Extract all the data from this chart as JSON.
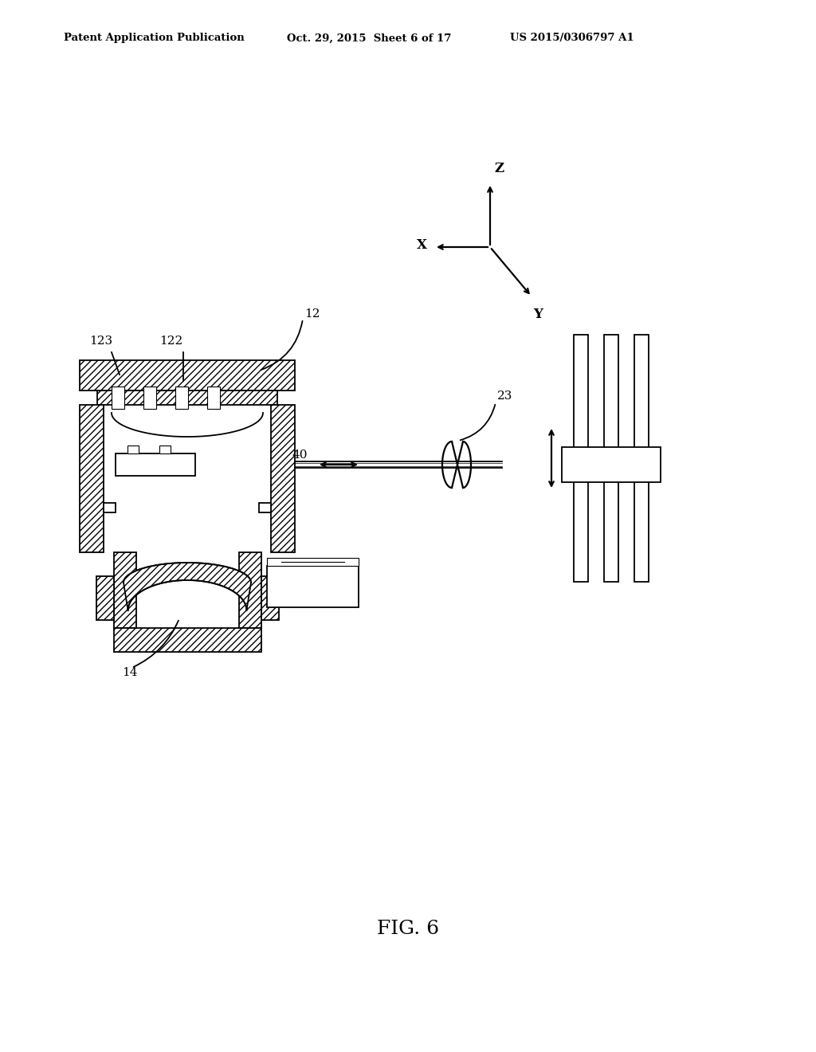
{
  "bg_color": "#ffffff",
  "line_color": "#000000",
  "header_left": "Patent Application Publication",
  "header_center": "Oct. 29, 2015  Sheet 6 of 17",
  "header_right": "US 2015/0306797 A1",
  "fig_title": "FIG. 6"
}
